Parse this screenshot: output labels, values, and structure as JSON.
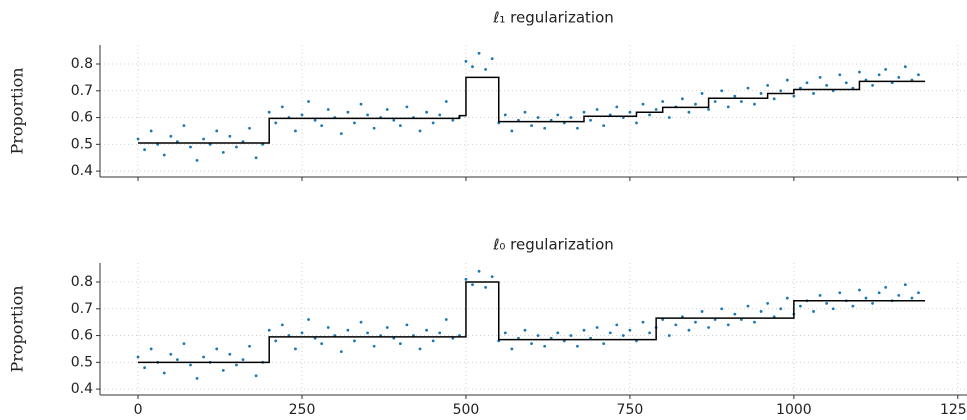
{
  "chart_data": [
    {
      "type": "scatter",
      "title": "ℓ₁ regularization",
      "y_label": "Proportion",
      "xlim": [
        -58,
        1264
      ],
      "ylim": [
        0.378,
        0.871
      ],
      "xticks": [
        0,
        250,
        500,
        750,
        1000,
        1250
      ],
      "yticks": [
        0.4,
        0.5,
        0.6,
        0.7,
        0.8
      ],
      "grid": true,
      "show_x_tick_labels": false,
      "points": {
        "color": "#1a78b2",
        "x": [
          0,
          10,
          20,
          30,
          40,
          50,
          60,
          70,
          80,
          90,
          100,
          110,
          120,
          130,
          140,
          150,
          160,
          170,
          180,
          190,
          200,
          210,
          220,
          230,
          240,
          250,
          260,
          270,
          280,
          290,
          300,
          310,
          320,
          330,
          340,
          350,
          360,
          370,
          380,
          390,
          400,
          410,
          420,
          430,
          440,
          450,
          460,
          470,
          480,
          490,
          500,
          510,
          520,
          530,
          540,
          550,
          560,
          570,
          580,
          590,
          600,
          610,
          620,
          630,
          640,
          650,
          660,
          670,
          680,
          690,
          700,
          710,
          720,
          730,
          740,
          750,
          760,
          770,
          780,
          790,
          800,
          810,
          820,
          830,
          840,
          850,
          860,
          870,
          880,
          890,
          900,
          910,
          920,
          930,
          940,
          950,
          960,
          970,
          980,
          990,
          1000,
          1010,
          1020,
          1030,
          1040,
          1050,
          1060,
          1070,
          1080,
          1090,
          1100,
          1110,
          1120,
          1130,
          1140,
          1150,
          1160,
          1170,
          1180,
          1190
        ],
        "values": [
          0.52,
          0.48,
          0.55,
          0.5,
          0.46,
          0.53,
          0.51,
          0.57,
          0.49,
          0.44,
          0.52,
          0.5,
          0.55,
          0.47,
          0.53,
          0.49,
          0.51,
          0.56,
          0.45,
          0.5,
          0.62,
          0.58,
          0.64,
          0.6,
          0.55,
          0.61,
          0.66,
          0.59,
          0.57,
          0.63,
          0.6,
          0.54,
          0.62,
          0.58,
          0.65,
          0.61,
          0.56,
          0.6,
          0.63,
          0.59,
          0.57,
          0.64,
          0.6,
          0.55,
          0.62,
          0.58,
          0.61,
          0.66,
          0.59,
          0.6,
          0.81,
          0.79,
          0.84,
          0.78,
          0.82,
          0.58,
          0.61,
          0.55,
          0.59,
          0.62,
          0.57,
          0.6,
          0.56,
          0.59,
          0.61,
          0.58,
          0.6,
          0.56,
          0.62,
          0.59,
          0.63,
          0.57,
          0.61,
          0.64,
          0.6,
          0.62,
          0.58,
          0.65,
          0.61,
          0.63,
          0.66,
          0.6,
          0.64,
          0.67,
          0.62,
          0.65,
          0.69,
          0.63,
          0.66,
          0.7,
          0.64,
          0.68,
          0.66,
          0.71,
          0.65,
          0.69,
          0.72,
          0.67,
          0.7,
          0.74,
          0.68,
          0.71,
          0.73,
          0.69,
          0.75,
          0.72,
          0.7,
          0.76,
          0.73,
          0.71,
          0.77,
          0.74,
          0.72,
          0.76,
          0.78,
          0.73,
          0.75,
          0.79,
          0.74,
          0.76
        ]
      },
      "fit": {
        "color": "#000000",
        "x": [
          0,
          200,
          200,
          490,
          490,
          500,
          500,
          550,
          550,
          680,
          680,
          760,
          760,
          800,
          800,
          870,
          870,
          960,
          960,
          1000,
          1000,
          1100,
          1100,
          1200
        ],
        "values": [
          0.505,
          0.505,
          0.597,
          0.597,
          0.607,
          0.607,
          0.75,
          0.75,
          0.585,
          0.585,
          0.605,
          0.605,
          0.62,
          0.62,
          0.638,
          0.638,
          0.672,
          0.672,
          0.69,
          0.69,
          0.705,
          0.705,
          0.735,
          0.735
        ]
      }
    },
    {
      "type": "scatter",
      "title": "ℓ₀ regularization",
      "y_label": "Proportion",
      "xlim": [
        -58,
        1264
      ],
      "ylim": [
        0.378,
        0.871
      ],
      "xticks": [
        0,
        250,
        500,
        750,
        1000,
        1250
      ],
      "yticks": [
        0.4,
        0.5,
        0.6,
        0.7,
        0.8
      ],
      "grid": true,
      "show_x_tick_labels": true,
      "points": {
        "color": "#1a78b2",
        "x": [
          0,
          10,
          20,
          30,
          40,
          50,
          60,
          70,
          80,
          90,
          100,
          110,
          120,
          130,
          140,
          150,
          160,
          170,
          180,
          190,
          200,
          210,
          220,
          230,
          240,
          250,
          260,
          270,
          280,
          290,
          300,
          310,
          320,
          330,
          340,
          350,
          360,
          370,
          380,
          390,
          400,
          410,
          420,
          430,
          440,
          450,
          460,
          470,
          480,
          490,
          500,
          510,
          520,
          530,
          540,
          550,
          560,
          570,
          580,
          590,
          600,
          610,
          620,
          630,
          640,
          650,
          660,
          670,
          680,
          690,
          700,
          710,
          720,
          730,
          740,
          750,
          760,
          770,
          780,
          790,
          800,
          810,
          820,
          830,
          840,
          850,
          860,
          870,
          880,
          890,
          900,
          910,
          920,
          930,
          940,
          950,
          960,
          970,
          980,
          990,
          1000,
          1010,
          1020,
          1030,
          1040,
          1050,
          1060,
          1070,
          1080,
          1090,
          1100,
          1110,
          1120,
          1130,
          1140,
          1150,
          1160,
          1170,
          1180,
          1190
        ],
        "values": [
          0.52,
          0.48,
          0.55,
          0.5,
          0.46,
          0.53,
          0.51,
          0.57,
          0.49,
          0.44,
          0.52,
          0.5,
          0.55,
          0.47,
          0.53,
          0.49,
          0.51,
          0.56,
          0.45,
          0.5,
          0.62,
          0.58,
          0.64,
          0.6,
          0.55,
          0.61,
          0.66,
          0.59,
          0.57,
          0.63,
          0.6,
          0.54,
          0.62,
          0.58,
          0.65,
          0.61,
          0.56,
          0.6,
          0.63,
          0.59,
          0.57,
          0.64,
          0.6,
          0.55,
          0.62,
          0.58,
          0.61,
          0.66,
          0.59,
          0.6,
          0.81,
          0.79,
          0.84,
          0.78,
          0.82,
          0.58,
          0.61,
          0.55,
          0.59,
          0.62,
          0.57,
          0.6,
          0.56,
          0.59,
          0.61,
          0.58,
          0.6,
          0.56,
          0.62,
          0.59,
          0.63,
          0.57,
          0.61,
          0.64,
          0.6,
          0.62,
          0.58,
          0.65,
          0.61,
          0.63,
          0.66,
          0.6,
          0.64,
          0.67,
          0.62,
          0.65,
          0.69,
          0.63,
          0.66,
          0.7,
          0.64,
          0.68,
          0.66,
          0.71,
          0.65,
          0.69,
          0.72,
          0.67,
          0.7,
          0.74,
          0.68,
          0.71,
          0.73,
          0.69,
          0.75,
          0.72,
          0.7,
          0.76,
          0.73,
          0.71,
          0.77,
          0.74,
          0.72,
          0.76,
          0.78,
          0.73,
          0.75,
          0.79,
          0.74,
          0.76
        ]
      },
      "fit": {
        "color": "#000000",
        "x": [
          0,
          200,
          200,
          500,
          500,
          550,
          550,
          790,
          790,
          1000,
          1000,
          1200
        ],
        "values": [
          0.5,
          0.5,
          0.595,
          0.595,
          0.8,
          0.8,
          0.585,
          0.585,
          0.665,
          0.665,
          0.73,
          0.73
        ]
      }
    }
  ]
}
